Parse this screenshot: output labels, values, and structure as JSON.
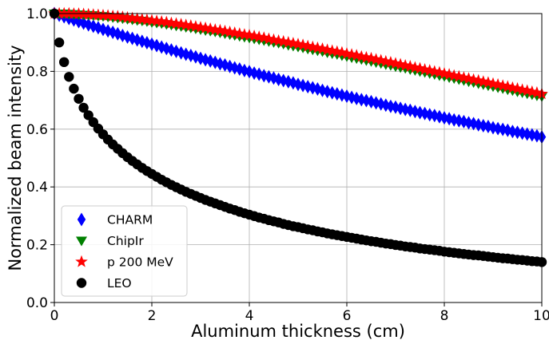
{
  "chart_data": {
    "type": "scatter",
    "xlabel": "Aluminum thickness (cm)",
    "ylabel": "Normalized beam intensity",
    "xlim": [
      0,
      10
    ],
    "ylim": [
      0.0,
      1.0
    ],
    "xticks": [
      0,
      2,
      4,
      6,
      8,
      10
    ],
    "xtick_labels": [
      "0",
      "2",
      "4",
      "6",
      "8",
      "10"
    ],
    "yticks": [
      0.0,
      0.2,
      0.4,
      0.6,
      0.8,
      1.0
    ],
    "ytick_labels": [
      "0.0",
      "0.2",
      "0.4",
      "0.6",
      "0.8",
      "1.0"
    ],
    "grid": true,
    "legend_position": "lower-left",
    "x_step": 0.1,
    "series": [
      {
        "name": "CHARM",
        "marker": "thin-diamond",
        "color": "#0000ff",
        "y": [
          1.0,
          0.994,
          0.989,
          0.983,
          0.978,
          0.972,
          0.967,
          0.961,
          0.956,
          0.951,
          0.945,
          0.94,
          0.935,
          0.93,
          0.924,
          0.919,
          0.914,
          0.909,
          0.904,
          0.899,
          0.894,
          0.889,
          0.884,
          0.879,
          0.874,
          0.869,
          0.864,
          0.859,
          0.855,
          0.85,
          0.845,
          0.84,
          0.836,
          0.831,
          0.826,
          0.822,
          0.817,
          0.812,
          0.808,
          0.803,
          0.799,
          0.794,
          0.79,
          0.785,
          0.781,
          0.777,
          0.772,
          0.768,
          0.764,
          0.76,
          0.755,
          0.751,
          0.747,
          0.743,
          0.739,
          0.734,
          0.73,
          0.726,
          0.722,
          0.718,
          0.714,
          0.71,
          0.706,
          0.702,
          0.699,
          0.695,
          0.691,
          0.687,
          0.683,
          0.679,
          0.676,
          0.672,
          0.668,
          0.665,
          0.661,
          0.657,
          0.654,
          0.65,
          0.647,
          0.643,
          0.639,
          0.636,
          0.632,
          0.629,
          0.626,
          0.622,
          0.619,
          0.615,
          0.612,
          0.609,
          0.605,
          0.602,
          0.599,
          0.596,
          0.592,
          0.589,
          0.586,
          0.583,
          0.58,
          0.577,
          0.573
        ]
      },
      {
        "name": "ChipIr",
        "marker": "triangle-down",
        "color": "#008000",
        "y": [
          1.0,
          1.0,
          1.0,
          0.999,
          0.998,
          0.997,
          0.996,
          0.995,
          0.994,
          0.992,
          0.991,
          0.989,
          0.987,
          0.985,
          0.983,
          0.981,
          0.979,
          0.977,
          0.975,
          0.973,
          0.97,
          0.968,
          0.966,
          0.963,
          0.961,
          0.958,
          0.956,
          0.953,
          0.951,
          0.948,
          0.945,
          0.942,
          0.94,
          0.937,
          0.934,
          0.931,
          0.928,
          0.925,
          0.922,
          0.919,
          0.916,
          0.913,
          0.91,
          0.907,
          0.904,
          0.901,
          0.898,
          0.895,
          0.891,
          0.888,
          0.885,
          0.882,
          0.878,
          0.875,
          0.872,
          0.869,
          0.865,
          0.862,
          0.859,
          0.855,
          0.852,
          0.848,
          0.845,
          0.842,
          0.838,
          0.835,
          0.831,
          0.828,
          0.824,
          0.821,
          0.817,
          0.814,
          0.811,
          0.807,
          0.804,
          0.8,
          0.797,
          0.793,
          0.79,
          0.786,
          0.783,
          0.779,
          0.776,
          0.772,
          0.769,
          0.765,
          0.762,
          0.758,
          0.755,
          0.751,
          0.748,
          0.744,
          0.741,
          0.737,
          0.734,
          0.73,
          0.727,
          0.723,
          0.72,
          0.716,
          0.713
        ]
      },
      {
        "name": "p 200 MeV",
        "marker": "star",
        "color": "#ff0000",
        "y": [
          1.0,
          1.0,
          1.0,
          1.0,
          0.999,
          0.999,
          0.998,
          0.997,
          0.996,
          0.995,
          0.994,
          0.993,
          0.991,
          0.99,
          0.988,
          0.986,
          0.984,
          0.982,
          0.98,
          0.978,
          0.976,
          0.974,
          0.972,
          0.97,
          0.967,
          0.965,
          0.963,
          0.96,
          0.958,
          0.955,
          0.952,
          0.95,
          0.947,
          0.944,
          0.942,
          0.939,
          0.936,
          0.933,
          0.93,
          0.927,
          0.925,
          0.922,
          0.919,
          0.916,
          0.912,
          0.909,
          0.906,
          0.903,
          0.9,
          0.897,
          0.894,
          0.891,
          0.887,
          0.884,
          0.881,
          0.878,
          0.874,
          0.871,
          0.868,
          0.865,
          0.861,
          0.858,
          0.855,
          0.851,
          0.848,
          0.845,
          0.841,
          0.838,
          0.834,
          0.831,
          0.827,
          0.824,
          0.82,
          0.817,
          0.813,
          0.81,
          0.806,
          0.803,
          0.799,
          0.796,
          0.792,
          0.789,
          0.785,
          0.782,
          0.778,
          0.775,
          0.771,
          0.768,
          0.764,
          0.761,
          0.757,
          0.754,
          0.75,
          0.747,
          0.743,
          0.74,
          0.736,
          0.733,
          0.729,
          0.726,
          0.722
        ]
      },
      {
        "name": "LEO",
        "marker": "circle",
        "color": "#000000",
        "y": [
          1.0,
          0.9,
          0.832,
          0.781,
          0.74,
          0.705,
          0.674,
          0.648,
          0.624,
          0.602,
          0.582,
          0.564,
          0.547,
          0.532,
          0.517,
          0.503,
          0.49,
          0.478,
          0.466,
          0.455,
          0.445,
          0.435,
          0.425,
          0.416,
          0.407,
          0.399,
          0.391,
          0.383,
          0.376,
          0.369,
          0.362,
          0.355,
          0.349,
          0.343,
          0.337,
          0.331,
          0.325,
          0.32,
          0.314,
          0.309,
          0.304,
          0.299,
          0.294,
          0.29,
          0.285,
          0.281,
          0.277,
          0.272,
          0.268,
          0.264,
          0.261,
          0.257,
          0.253,
          0.25,
          0.246,
          0.243,
          0.239,
          0.236,
          0.233,
          0.23,
          0.227,
          0.224,
          0.221,
          0.218,
          0.215,
          0.212,
          0.21,
          0.207,
          0.204,
          0.202,
          0.199,
          0.197,
          0.194,
          0.192,
          0.19,
          0.187,
          0.185,
          0.183,
          0.181,
          0.179,
          0.176,
          0.174,
          0.172,
          0.17,
          0.168,
          0.166,
          0.164,
          0.163,
          0.161,
          0.159,
          0.157,
          0.155,
          0.153,
          0.152,
          0.15,
          0.148,
          0.147,
          0.145,
          0.143,
          0.142,
          0.14
        ]
      }
    ]
  }
}
